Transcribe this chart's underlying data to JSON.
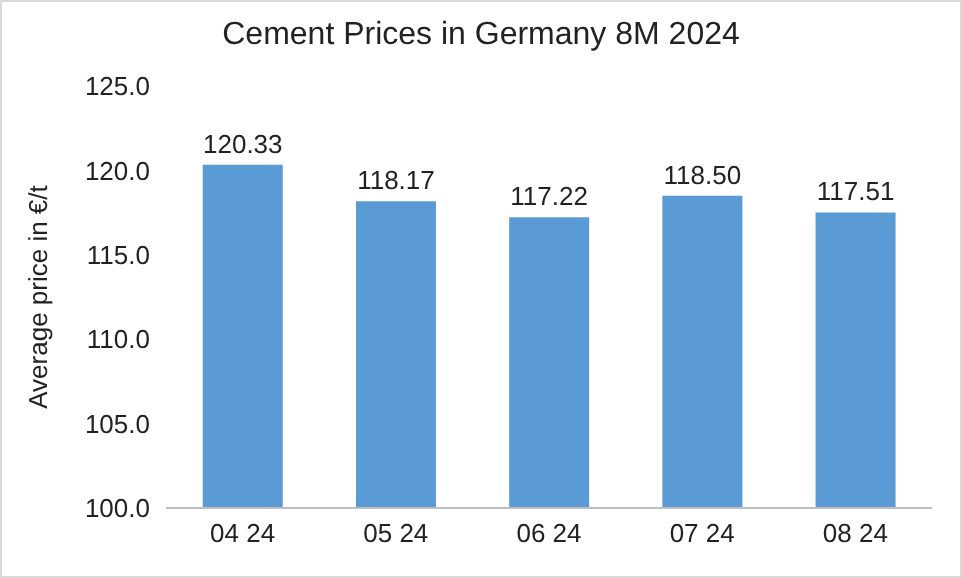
{
  "chart_data": {
    "type": "bar",
    "title": "Cement Prices in Germany 8M 2024",
    "ylabel": "Average price in €/t",
    "categories": [
      "04 24",
      "05 24",
      "06 24",
      "07 24",
      "08 24"
    ],
    "values": [
      120.33,
      118.17,
      117.22,
      118.5,
      117.51
    ],
    "value_labels": [
      "120.33",
      "118.17",
      "117.22",
      "118.50",
      "117.51"
    ],
    "color": "#5b9bd5",
    "ylim": [
      100,
      125
    ],
    "yticks": [
      {
        "value": 100,
        "label": "100.0"
      },
      {
        "value": 105,
        "label": "105.0"
      },
      {
        "value": 110,
        "label": "110.0"
      },
      {
        "value": 115,
        "label": "115.0"
      },
      {
        "value": 120,
        "label": "120.0"
      },
      {
        "value": 125,
        "label": "125.0"
      }
    ],
    "grid": false,
    "legend": false
  }
}
